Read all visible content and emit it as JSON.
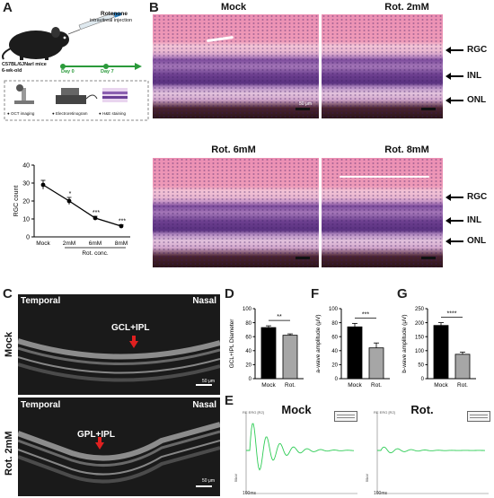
{
  "panels": {
    "A": {
      "letter": "A",
      "drug": "Rotenone",
      "route": "intravitreal injection",
      "mouse_line1": "C57BL/6JNarl mice",
      "mouse_line2": "6-wk-old",
      "day0": "Day 0",
      "day7": "Day 7",
      "methods": [
        "OCT imaging",
        "Electroretinogram",
        "H&E staining"
      ],
      "chart_data": {
        "type": "line",
        "categories": [
          "Mock",
          "2mM",
          "6mM",
          "8mM"
        ],
        "values": [
          29,
          20,
          10.5,
          6
        ],
        "errors": [
          2.5,
          2.0,
          1.0,
          0.8
        ],
        "significance": [
          "",
          "*",
          "***",
          "***"
        ],
        "ylabel": "RGC count",
        "xlabel": "Rot. conc.",
        "ylim": [
          0,
          40
        ],
        "yticks": [
          0,
          10,
          20,
          30,
          40
        ]
      }
    },
    "B": {
      "letter": "B",
      "images": [
        {
          "title": "Mock",
          "layers": []
        },
        {
          "title": "Rot. 2mM",
          "layers": [
            "RGC",
            "INL",
            "ONL"
          ]
        },
        {
          "title": "Rot. 6mM",
          "layers": []
        },
        {
          "title": "Rot. 8mM",
          "layers": [
            "RGC",
            "INL",
            "ONL"
          ]
        }
      ],
      "scale": "50 μm"
    },
    "C": {
      "letter": "C",
      "scans": [
        {
          "row_label": "Mock",
          "left": "Temporal",
          "right": "Nasal",
          "layer": "GCL+IPL",
          "scale": "50 μm"
        },
        {
          "row_label": "Rot. 2mM",
          "left": "Temporal",
          "right": "Nasal",
          "layer": "GPL+IPL",
          "scale": "50 μm"
        }
      ]
    },
    "D": {
      "letter": "D",
      "chart_data": {
        "type": "bar",
        "categories": [
          "Mock",
          "Rot."
        ],
        "values": [
          73,
          62
        ],
        "errors": [
          2.5,
          2
        ],
        "colors": [
          "#000000",
          "#a6a6a6"
        ],
        "ylabel": "GCL+IPL Diameter",
        "ylim": [
          0,
          100
        ],
        "yticks": [
          0,
          20,
          40,
          60,
          80,
          100
        ],
        "significance": "**"
      }
    },
    "F": {
      "letter": "F",
      "chart_data": {
        "type": "bar",
        "categories": [
          "Mock",
          "Rot."
        ],
        "values": [
          74,
          44
        ],
        "errors": [
          5,
          7
        ],
        "colors": [
          "#000000",
          "#a6a6a6"
        ],
        "ylabel": "a-wave amplitude (μV)",
        "ylim": [
          0,
          100
        ],
        "yticks": [
          0,
          20,
          40,
          60,
          80,
          100
        ],
        "significance": "***"
      }
    },
    "G": {
      "letter": "G",
      "chart_data": {
        "type": "bar",
        "categories": [
          "Mock",
          "Rot."
        ],
        "values": [
          190,
          87
        ],
        "errors": [
          10,
          8
        ],
        "colors": [
          "#000000",
          "#a6a6a6"
        ],
        "ylabel": "b-wave amplitude (μV)",
        "ylim": [
          0,
          250
        ],
        "yticks": [
          0,
          50,
          100,
          150,
          200,
          250
        ],
        "significance": "****"
      }
    },
    "E": {
      "letter": "E",
      "traces": [
        {
          "title": "Mock",
          "header": "RE ERG [R2]",
          "xscale": "100ms",
          "yscale": "50uV"
        },
        {
          "title": "Rot.",
          "header": "RE ERG [R2]",
          "xscale": "100ms",
          "yscale": "50uV"
        }
      ],
      "trace_color": "#2ecc55"
    }
  }
}
